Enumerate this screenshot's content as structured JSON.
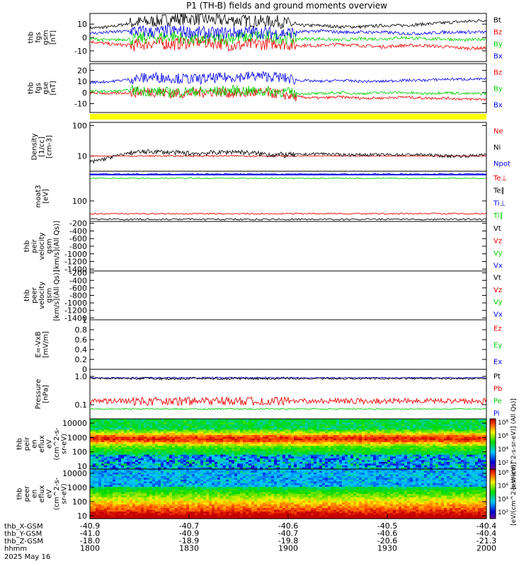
{
  "title": "P1 (TH-B) fields and ground moments overview",
  "colors": {
    "black": "#000000",
    "red": "#ee0000",
    "green": "#00d000",
    "blue": "#0000ee",
    "yellow": "#ffff00"
  },
  "chart_data": [
    {
      "type": "line",
      "panel": "fgs_gsm",
      "ylabel_lines": [
        "thb",
        "fgs",
        "gsm",
        "[nT]"
      ],
      "yticks": [
        -10,
        0,
        10
      ],
      "ylim": [
        -18,
        18
      ],
      "series": [
        {
          "name": "Bt",
          "color": "#000000",
          "values": [
            7,
            8,
            11,
            12,
            14,
            14,
            13,
            13,
            12,
            12,
            9,
            9,
            8,
            8,
            9,
            9,
            10,
            11,
            12,
            13
          ]
        },
        {
          "name": "Bz",
          "color": "#ee0000",
          "values": [
            -3,
            -5,
            -6,
            -4,
            -5,
            -3,
            -4,
            -6,
            -5,
            -4,
            -6,
            -6,
            -5,
            -6,
            -7,
            -6,
            -6,
            -7,
            -8,
            -8
          ]
        },
        {
          "name": "By",
          "color": "#00d000",
          "values": [
            -1,
            -2,
            -1,
            0,
            1,
            -2,
            -1,
            0,
            1,
            0,
            -1,
            -1,
            -2,
            -1,
            -1,
            0,
            -1,
            -1,
            -2,
            -1
          ]
        },
        {
          "name": "Bx",
          "color": "#0000ee",
          "values": [
            3,
            4,
            5,
            4,
            5,
            4,
            3,
            4,
            4,
            3,
            4,
            5,
            4,
            4,
            4,
            3,
            3,
            4,
            4,
            4
          ]
        }
      ]
    },
    {
      "type": "line",
      "panel": "fgs_gse",
      "ylabel_lines": [
        "thb",
        "fgs",
        "gse",
        "[nT]"
      ],
      "yticks": [
        -10,
        0,
        10,
        20
      ],
      "ylim": [
        -18,
        26
      ],
      "series": [
        {
          "name": "Bz",
          "color": "#ee0000",
          "values": [
            0,
            -1,
            0,
            1,
            -1,
            0,
            1,
            -1,
            0,
            -1,
            -4,
            -5,
            -4,
            -5,
            -5,
            -4,
            -5,
            -5,
            -6,
            -6
          ]
        },
        {
          "name": "By",
          "color": "#00d000",
          "values": [
            1,
            1,
            2,
            1,
            0,
            1,
            1,
            2,
            1,
            1,
            -1,
            -1,
            0,
            -1,
            0,
            0,
            -1,
            0,
            -1,
            -1
          ]
        },
        {
          "name": "Bx",
          "color": "#0000ee",
          "values": [
            9,
            10,
            12,
            14,
            13,
            12,
            13,
            14,
            15,
            14,
            11,
            10,
            11,
            10,
            10,
            11,
            11,
            12,
            12,
            12
          ]
        }
      ]
    },
    {
      "type": "line",
      "panel": "density",
      "ylabel_lines": [
        "Density",
        "[1/cc]",
        "[cm-3]"
      ],
      "yticks": [
        "100",
        "10"
      ],
      "yscale": "log",
      "series": [
        {
          "name": "Ne",
          "color": "#ee0000",
          "values": [
            10,
            10,
            10,
            10,
            10,
            10,
            10,
            10,
            10,
            10,
            10,
            10,
            10,
            10,
            10,
            10,
            10,
            10,
            10,
            10
          ]
        },
        {
          "name": "Ni",
          "color": "#000000",
          "values": [
            6,
            9,
            13,
            14,
            13,
            12,
            13,
            14,
            12,
            11,
            11,
            12,
            11,
            11,
            11,
            11,
            11,
            10,
            10,
            11
          ]
        },
        {
          "name": "Npot",
          "color": "#0000ee",
          "values": []
        }
      ]
    },
    {
      "type": "line",
      "panel": "temperature",
      "ylabel_lines": [
        "moat3",
        "[eV]"
      ],
      "yticks": [
        "100"
      ],
      "yscale": "log",
      "series": [
        {
          "name": "Te⊥",
          "color": "#ee0000",
          "values": []
        },
        {
          "name": "Te∥",
          "color": "#000000",
          "values": []
        },
        {
          "name": "Ti⊥",
          "color": "#0000ee",
          "values": []
        },
        {
          "name": "Ti∥",
          "color": "#00d000",
          "values": []
        }
      ]
    },
    {
      "type": "line",
      "panel": "peir_velocity",
      "ylabel_lines": [
        "thb",
        "peir",
        "velocity",
        "gsm",
        "[km/s](All Qs)]"
      ],
      "yticks": [
        -1400,
        -1200,
        -1000,
        -800,
        -600,
        -400,
        -200
      ],
      "ylim": [
        -1450,
        -150
      ],
      "series": [
        {
          "name": "Vt",
          "values": []
        },
        {
          "name": "Vz",
          "values": []
        },
        {
          "name": "Vy",
          "values": []
        },
        {
          "name": "Vx",
          "values": []
        }
      ]
    },
    {
      "type": "line",
      "panel": "peer_velocity",
      "ylabel_lines": [
        "thb",
        "peer",
        "velocity",
        "gsm",
        "[km/s](All Qs)]"
      ],
      "yticks": [
        -1400,
        -1200,
        -1000,
        -800,
        -600,
        -400,
        -200
      ],
      "ylim": [
        -1450,
        -150
      ],
      "series": [
        {
          "name": "Vt",
          "values": []
        },
        {
          "name": "Vz",
          "values": []
        },
        {
          "name": "Vy",
          "values": []
        },
        {
          "name": "Vx",
          "values": []
        }
      ]
    },
    {
      "type": "line",
      "panel": "efield",
      "ylabel_lines": [
        "E=-VxB",
        "[mV/m]"
      ],
      "yticks": [
        0.0,
        0.2,
        0.4,
        0.6,
        0.8,
        1.0
      ],
      "ylim": [
        0,
        1
      ],
      "series": [
        {
          "name": "Ez",
          "values": []
        },
        {
          "name": "Ey",
          "values": []
        },
        {
          "name": "Ex",
          "values": []
        }
      ]
    },
    {
      "type": "line",
      "panel": "pressure",
      "ylabel_lines": [
        "Pressure",
        "[nPa]"
      ],
      "yticks": [
        "1.0",
        "0.1"
      ],
      "yscale": "log",
      "series": [
        {
          "name": "Pt",
          "color": "#000000",
          "values": []
        },
        {
          "name": "Pb",
          "color": "#ee0000",
          "values": []
        },
        {
          "name": "Pe",
          "color": "#00d000",
          "values": []
        },
        {
          "name": "Pi",
          "color": "#0000ee",
          "values": []
        }
      ]
    },
    {
      "type": "heatmap",
      "panel": "peir_spectrogram",
      "ylabel_lines": [
        "thb",
        "peir",
        "en",
        "eflux",
        "eV",
        "(cm^2-s-",
        "sr-eV)"
      ],
      "yticks": [
        "10000",
        "1000",
        "100",
        "10"
      ],
      "yscale": "log",
      "colorbar": {
        "ticks": [
          "10⁸",
          "10⁶",
          "10⁴",
          "10²"
        ],
        "label": "[eV/(cm^2-s-sr-eV)] (All Qs)]"
      }
    },
    {
      "type": "heatmap",
      "panel": "peer_spectrogram",
      "ylabel_lines": [
        "thb",
        "peer",
        "en",
        "eflux",
        "eV",
        "(cm^2-s-",
        "sr-eV)"
      ],
      "yticks": [
        "10000",
        "1000",
        "100",
        "10"
      ],
      "yscale": "log",
      "colorbar": {
        "ticks": [
          "10⁸",
          "10⁶",
          "10⁴",
          "10²"
        ],
        "label": "[eV/(cm^2-s-sr-eV)]"
      }
    }
  ],
  "xaxis": {
    "rows": [
      {
        "label": "thb_X-GSM",
        "values": [
          "-40.9",
          "-40.7",
          "-40.6",
          "-40.5",
          "-40.4"
        ]
      },
      {
        "label": "thb_Y-GSM",
        "values": [
          "-41.0",
          "-40.9",
          "-40.7",
          "-40.6",
          "-40.4"
        ]
      },
      {
        "label": "thb_Z-GSM",
        "values": [
          "-18.0",
          "-18.9",
          "-19.8",
          "-20.6",
          "-21.3"
        ]
      },
      {
        "label": "hhmm",
        "values": [
          "1800",
          "1830",
          "1900",
          "1930",
          "2000"
        ]
      }
    ],
    "date": "2025 May 16"
  }
}
